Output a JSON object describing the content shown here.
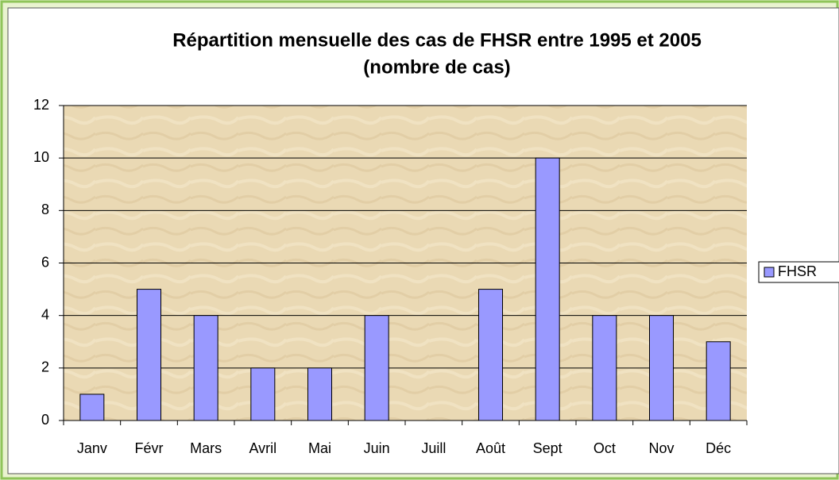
{
  "chart_data": {
    "type": "bar",
    "title": "Répartition mensuelle des cas de FHSR entre 1995 et 2005",
    "subtitle": "(nombre de cas)",
    "categories": [
      "Janv",
      "Févr",
      "Mars",
      "Avril",
      "Mai",
      "Juin",
      "Juill",
      "Août",
      "Sept",
      "Oct",
      "Nov",
      "Déc"
    ],
    "series": [
      {
        "name": "FHSR",
        "color": "#9999ff",
        "values": [
          1,
          5,
          4,
          2,
          2,
          4,
          0,
          5,
          10,
          4,
          4,
          3
        ]
      }
    ],
    "ylim": [
      0,
      12
    ],
    "yticks": [
      0,
      2,
      4,
      6,
      8,
      10,
      12
    ],
    "grid": true,
    "legend": "right"
  }
}
